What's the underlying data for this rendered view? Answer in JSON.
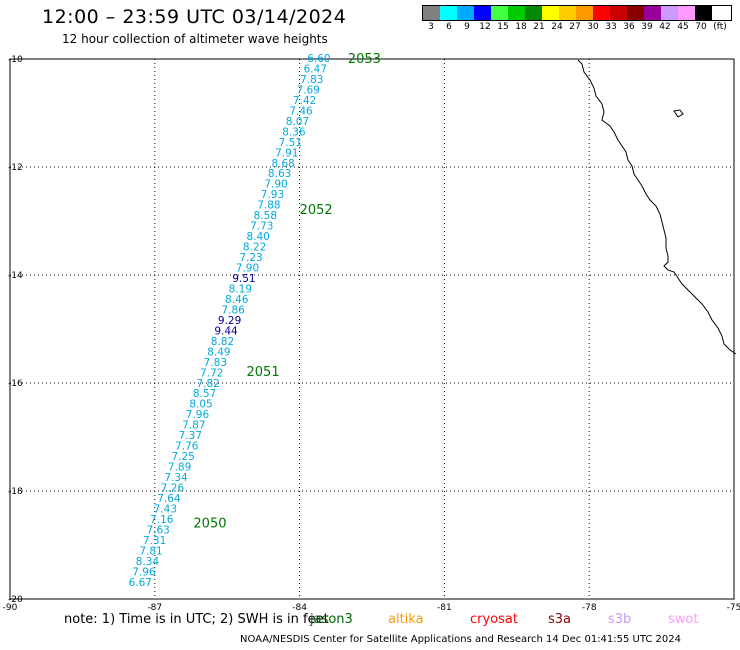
{
  "header": {
    "title": "12:00 – 23:59 UTC 03/14/2024",
    "subtitle": "12 hour collection of altimeter wave heights"
  },
  "legend": {
    "unit": "(ft)",
    "bins": [
      {
        "label": "3",
        "color": "#808080"
      },
      {
        "label": "6",
        "color": "#00ffff"
      },
      {
        "label": "9",
        "color": "#00aaff"
      },
      {
        "label": "12",
        "color": "#0000ff"
      },
      {
        "label": "15",
        "color": "#44ff44"
      },
      {
        "label": "18",
        "color": "#00cc00"
      },
      {
        "label": "21",
        "color": "#008800"
      },
      {
        "label": "24",
        "color": "#ffff00"
      },
      {
        "label": "27",
        "color": "#ffcc00"
      },
      {
        "label": "30",
        "color": "#ff9900"
      },
      {
        "label": "33",
        "color": "#ff0000"
      },
      {
        "label": "36",
        "color": "#cc0000"
      },
      {
        "label": "39",
        "color": "#880000"
      },
      {
        "label": "42",
        "color": "#990099"
      },
      {
        "label": "45",
        "color": "#cc99ff"
      },
      {
        "label": "70",
        "color": "#ff99ff"
      },
      {
        "label": "",
        "color": "#000000"
      }
    ]
  },
  "map": {
    "lon_range": [
      -90,
      -75
    ],
    "lat_range": [
      -20,
      -10
    ],
    "lon_ticks": [
      "-90",
      "-87",
      "-84",
      "-81",
      "-78",
      "-75"
    ],
    "lat_ticks": [
      "-10",
      "-12",
      "-14",
      "-16",
      "-18",
      "-20"
    ],
    "track_color": "#00aadd",
    "high_value_color": "#000099",
    "time_label_color": "#007700",
    "time_labels": [
      {
        "text": "2053",
        "lon": -83.0,
        "lat": -10.0
      },
      {
        "text": "2052",
        "lon": -84.0,
        "lat": -12.8
      },
      {
        "text": "2051",
        "lon": -85.1,
        "lat": -15.8
      },
      {
        "text": "2050",
        "lon": -86.2,
        "lat": -18.6
      }
    ],
    "swh_values": [
      "6.60",
      "6.47",
      "7.83",
      "7.69",
      "7.42",
      "7.46",
      "8.07",
      "8.36",
      "7.51",
      "7.91",
      "8.68",
      "8.63",
      "7.90",
      "7.93",
      "7.88",
      "8.58",
      "7.73",
      "8.40",
      "8.22",
      "7.23",
      "7.90",
      "9.51",
      "8.19",
      "8.46",
      "7.86",
      "9.29",
      "9.44",
      "8.82",
      "8.49",
      "7.83",
      "7.72",
      "7.82",
      "8.57",
      "8.05",
      "7.96",
      "7.87",
      "7.37",
      "7.76",
      "7.25",
      "7.89",
      "7.34",
      "7.26",
      "7.64",
      "7.43",
      "7.16",
      "7.63",
      "7.31",
      "7.81",
      "8.34",
      "7.96",
      "6.67"
    ],
    "swh_lat_start": -10.0,
    "swh_lat_end": -19.7,
    "swh_lon_start": -83.6,
    "swh_lon_end": -87.3
  },
  "footer": {
    "note": "note: 1) Time is in UTC; 2) SWH is in feet",
    "missions": [
      {
        "name": "jason3",
        "color": "#006600"
      },
      {
        "name": "altika",
        "color": "#ff9900"
      },
      {
        "name": "cryosat",
        "color": "#ff0000"
      },
      {
        "name": "s3a",
        "color": "#880000"
      },
      {
        "name": "s3b",
        "color": "#cc99ff"
      },
      {
        "name": "swot",
        "color": "#ff99ff"
      }
    ],
    "credit": "NOAA/NESDIS Center for Satellite Applications and Research    14 Dec 01:41:55 UTC 2024"
  }
}
